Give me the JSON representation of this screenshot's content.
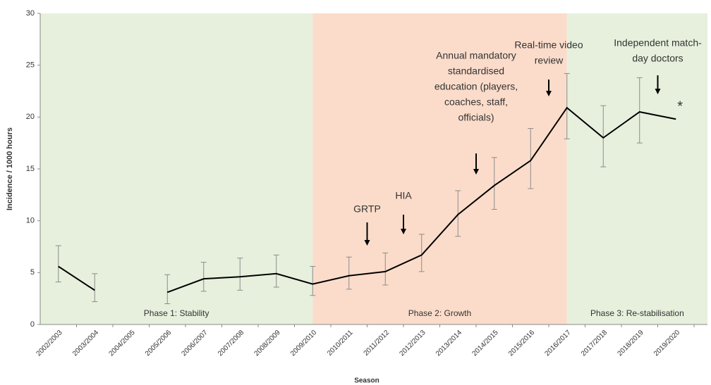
{
  "chart_data": {
    "type": "line",
    "y_label": "Incidence / 1000 hours",
    "x_label": "Season",
    "categories": [
      "2002/2003",
      "2003/2004",
      "2004/2005",
      "2005/2006",
      "2006/2007",
      "2007/2008",
      "2008/2009",
      "2009/2010",
      "2010/2011",
      "2011/2012",
      "2012/2013",
      "2013/2014",
      "2014/2015",
      "2015/2016",
      "2016/2017",
      "2017/2018",
      "2018/2019",
      "2019/2020"
    ],
    "series": [
      {
        "color": "#000000",
        "error_color": "#8c8c8c",
        "values": [
          5.6,
          3.3,
          null,
          3.1,
          4.4,
          4.6,
          4.9,
          3.9,
          4.7,
          5.1,
          6.7,
          10.6,
          13.4,
          15.8,
          20.9,
          18.0,
          20.5,
          19.8
        ],
        "error_low": [
          4.1,
          2.2,
          null,
          2.0,
          3.2,
          3.3,
          3.6,
          2.8,
          3.4,
          3.8,
          5.1,
          8.5,
          11.1,
          13.1,
          17.9,
          15.2,
          17.5,
          null
        ],
        "error_high": [
          7.6,
          4.9,
          null,
          4.8,
          6.0,
          6.4,
          6.7,
          5.6,
          6.5,
          6.9,
          8.7,
          12.9,
          16.1,
          18.9,
          24.2,
          21.1,
          23.8,
          null
        ]
      }
    ],
    "ylim": [
      0,
      30
    ],
    "yticks": [
      0,
      5,
      10,
      15,
      20,
      25,
      30
    ],
    "phases": [
      {
        "label": "Phase 1: Stability",
        "from": "2002/2003",
        "to": "2009/2010",
        "color": "#e6f0dd"
      },
      {
        "label": "Phase 2: Growth",
        "from": "2009/2010",
        "to": "2016/2017",
        "color": "#fbdcca"
      },
      {
        "label": "Phase 3: Re-stabilisation",
        "from": "2016/2017",
        "to": "2019/2020",
        "color": "#e6f0dd"
      }
    ],
    "annotations": [
      {
        "lines": [
          "GRTP"
        ],
        "between": [
          "2010/2011",
          "2011/2012"
        ]
      },
      {
        "lines": [
          "HIA"
        ],
        "between": [
          "2011/2012",
          "2012/2013"
        ]
      },
      {
        "lines": [
          "Annual mandatory",
          "standardised",
          "education (players,",
          "coaches, staff,",
          "officials)"
        ],
        "between": [
          "2013/2014",
          "2014/2015"
        ]
      },
      {
        "lines": [
          "Real-time video",
          "review"
        ],
        "between": [
          "2015/2016",
          "2016/2017"
        ]
      },
      {
        "lines": [
          "Independent match-",
          "day doctors"
        ],
        "between": [
          "2018/2019",
          "2019/2020"
        ]
      }
    ],
    "marker_note": "*"
  }
}
